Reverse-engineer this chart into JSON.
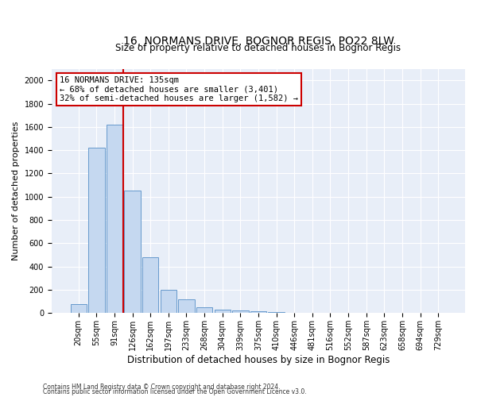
{
  "title": "16, NORMANS DRIVE, BOGNOR REGIS, PO22 8LW",
  "subtitle": "Size of property relative to detached houses in Bognor Regis",
  "xlabel": "Distribution of detached houses by size in Bognor Regis",
  "ylabel": "Number of detached properties",
  "categories": [
    "20sqm",
    "55sqm",
    "91sqm",
    "126sqm",
    "162sqm",
    "197sqm",
    "233sqm",
    "268sqm",
    "304sqm",
    "339sqm",
    "375sqm",
    "410sqm",
    "446sqm",
    "481sqm",
    "516sqm",
    "552sqm",
    "587sqm",
    "623sqm",
    "658sqm",
    "694sqm",
    "729sqm"
  ],
  "values": [
    75,
    1420,
    1620,
    1050,
    480,
    200,
    115,
    50,
    30,
    20,
    15,
    8,
    5,
    4,
    3,
    2,
    1,
    1,
    0,
    0,
    0
  ],
  "bar_color": "#c5d8f0",
  "bar_edge_color": "#6699cc",
  "vline_color": "#cc0000",
  "annotation_text": "16 NORMANS DRIVE: 135sqm\n← 68% of detached houses are smaller (3,401)\n32% of semi-detached houses are larger (1,582) →",
  "annotation_box_color": "white",
  "annotation_box_edge": "#cc0000",
  "ylim": [
    0,
    2100
  ],
  "yticks": [
    0,
    200,
    400,
    600,
    800,
    1000,
    1200,
    1400,
    1600,
    1800,
    2000
  ],
  "footer1": "Contains HM Land Registry data © Crown copyright and database right 2024.",
  "footer2": "Contains public sector information licensed under the Open Government Licence v3.0.",
  "bg_color": "#e8eef8",
  "grid_color": "#ffffff",
  "title_fontsize": 10,
  "subtitle_fontsize": 8.5,
  "xlabel_fontsize": 8.5,
  "ylabel_fontsize": 8,
  "tick_fontsize": 7,
  "footer_fontsize": 5.5,
  "annot_fontsize": 7.5
}
